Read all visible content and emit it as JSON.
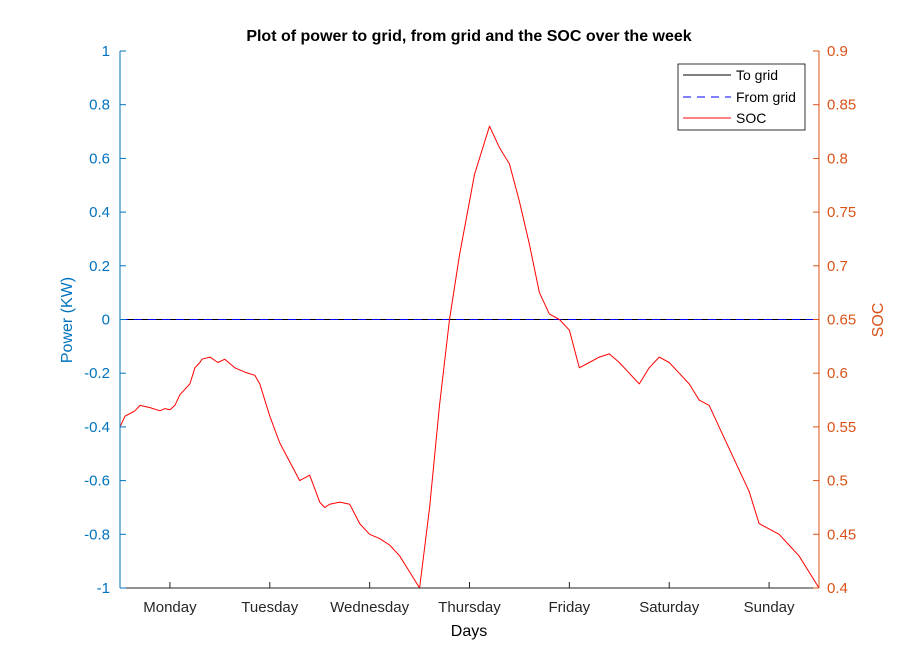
{
  "chart_data": {
    "type": "line",
    "title": "Plot of power to grid, from grid and the SOC over the week",
    "xlabel": "Days",
    "ylabel_left": "Power (KW)",
    "ylabel_right": "SOC",
    "categories": [
      "Monday",
      "Tuesday",
      "Wednesday",
      "Thursday",
      "Friday",
      "Saturday",
      "Sunday"
    ],
    "xlim": [
      0,
      7
    ],
    "ylim_left": [
      -1,
      1
    ],
    "ylim_right": [
      0.4,
      0.9
    ],
    "yticks_left": [
      "-1",
      "-0.8",
      "-0.6",
      "-0.4",
      "-0.2",
      "0",
      "0.2",
      "0.4",
      "0.6",
      "0.8",
      "1"
    ],
    "yticks_right": [
      "0.4",
      "0.45",
      "0.5",
      "0.55",
      "0.6",
      "0.65",
      "0.7",
      "0.75",
      "0.8",
      "0.85",
      "0.9"
    ],
    "grid": false,
    "legend_position": "top-right",
    "colors": {
      "left_axis": "#0072BD",
      "right_axis": "#D95319",
      "to_grid": "#000000",
      "from_grid": "#0000FF",
      "soc": "#FF0000"
    },
    "series": [
      {
        "name": "To grid",
        "axis": "left",
        "style": "solid",
        "x": [
          0,
          7
        ],
        "y": [
          0,
          0
        ]
      },
      {
        "name": "From grid",
        "axis": "left",
        "style": "dashed",
        "x": [
          0,
          7
        ],
        "y": [
          0,
          0
        ]
      },
      {
        "name": "SOC",
        "axis": "right",
        "style": "solid",
        "x": [
          0,
          0.05,
          0.15,
          0.2,
          0.3,
          0.4,
          0.45,
          0.5,
          0.55,
          0.6,
          0.7,
          0.75,
          0.8,
          0.82,
          0.9,
          0.98,
          1.05,
          1.15,
          1.25,
          1.35,
          1.4,
          1.5,
          1.6,
          1.8,
          1.9,
          2.0,
          2.05,
          2.1,
          2.2,
          2.3,
          2.4,
          2.5,
          2.6,
          2.7,
          2.8,
          2.9,
          3.0,
          3.1,
          3.2,
          3.3,
          3.4,
          3.5,
          3.55,
          3.6,
          3.7,
          3.8,
          3.9,
          4.0,
          4.1,
          4.2,
          4.3,
          4.4,
          4.5,
          4.6,
          4.7,
          4.8,
          4.9,
          5.0,
          5.1,
          5.15,
          5.2,
          5.3,
          5.4,
          5.5,
          5.6,
          5.7,
          5.8,
          5.9,
          6.0,
          6.1,
          6.2,
          6.3,
          6.4,
          6.5,
          6.6,
          6.7,
          6.8,
          6.9,
          7.0
        ],
        "y": [
          0.55,
          0.56,
          0.565,
          0.57,
          0.568,
          0.565,
          0.567,
          0.566,
          0.57,
          0.58,
          0.59,
          0.605,
          0.61,
          0.613,
          0.615,
          0.61,
          0.613,
          0.605,
          0.601,
          0.598,
          0.59,
          0.56,
          0.535,
          0.5,
          0.505,
          0.48,
          0.475,
          0.478,
          0.48,
          0.478,
          0.46,
          0.45,
          0.446,
          0.44,
          0.43,
          0.415,
          0.4,
          0.475,
          0.57,
          0.65,
          0.71,
          0.76,
          0.785,
          0.8,
          0.83,
          0.81,
          0.795,
          0.76,
          0.72,
          0.675,
          0.655,
          0.65,
          0.64,
          0.605,
          0.61,
          0.615,
          0.618,
          0.61,
          0.6,
          0.595,
          0.59,
          0.605,
          0.615,
          0.61,
          0.6,
          0.59,
          0.575,
          0.57,
          0.55,
          0.53,
          0.51,
          0.49,
          0.46,
          0.455,
          0.45,
          0.44,
          0.43,
          0.415,
          0.4
        ]
      }
    ]
  }
}
